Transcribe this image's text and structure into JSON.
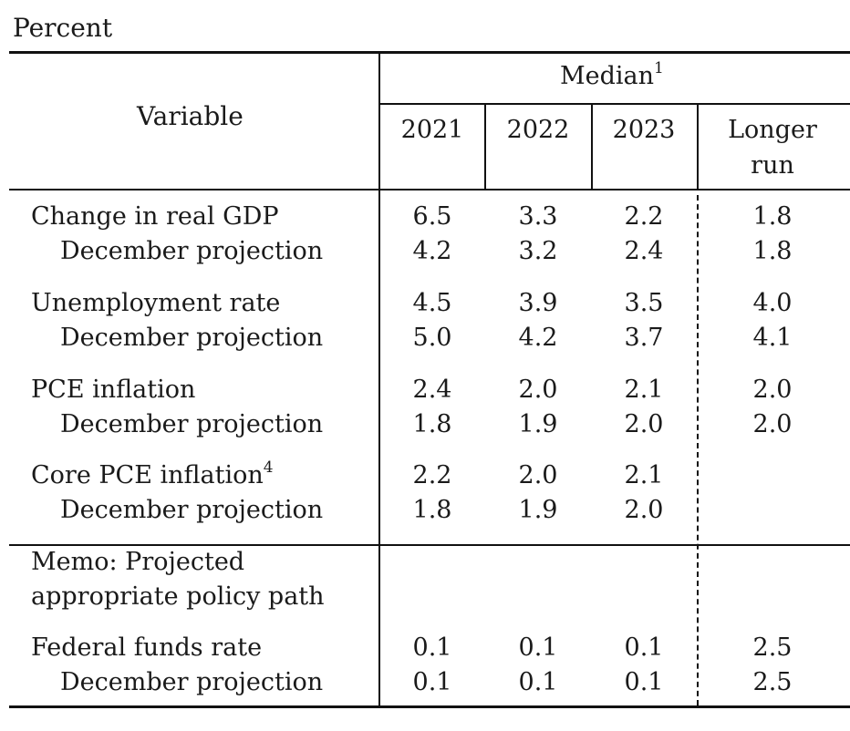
{
  "unit_label": "Percent",
  "header": {
    "variable": "Variable",
    "median": "Median",
    "median_note": "1",
    "years": [
      "2021",
      "2022",
      "2023"
    ],
    "longer_run_1": "Longer",
    "longer_run_2": "run"
  },
  "rows": [
    {
      "label": "Change in real GDP",
      "values": [
        "6.5",
        "3.3",
        "2.2",
        "1.8"
      ]
    },
    {
      "label": "December projection",
      "values": [
        "4.2",
        "3.2",
        "2.4",
        "1.8"
      ]
    },
    {
      "label": "Unemployment rate",
      "values": [
        "4.5",
        "3.9",
        "3.5",
        "4.0"
      ]
    },
    {
      "label": "December projection",
      "values": [
        "5.0",
        "4.2",
        "3.7",
        "4.1"
      ]
    },
    {
      "label": "PCE inflation",
      "values": [
        "2.4",
        "2.0",
        "2.1",
        "2.0"
      ]
    },
    {
      "label": "December projection",
      "values": [
        "1.8",
        "1.9",
        "2.0",
        "2.0"
      ]
    },
    {
      "label": "Core PCE inflation",
      "note": "4",
      "values": [
        "2.2",
        "2.0",
        "2.1",
        ""
      ]
    },
    {
      "label": "December projection",
      "values": [
        "1.8",
        "1.9",
        "2.0",
        ""
      ]
    }
  ],
  "memo": {
    "line1": "Memo: Projected",
    "line2": "appropriate policy path",
    "rows": [
      {
        "label": "Federal funds rate",
        "values": [
          "0.1",
          "0.1",
          "0.1",
          "2.5"
        ]
      },
      {
        "label": "December projection",
        "values": [
          "0.1",
          "0.1",
          "0.1",
          "2.5"
        ]
      }
    ]
  }
}
